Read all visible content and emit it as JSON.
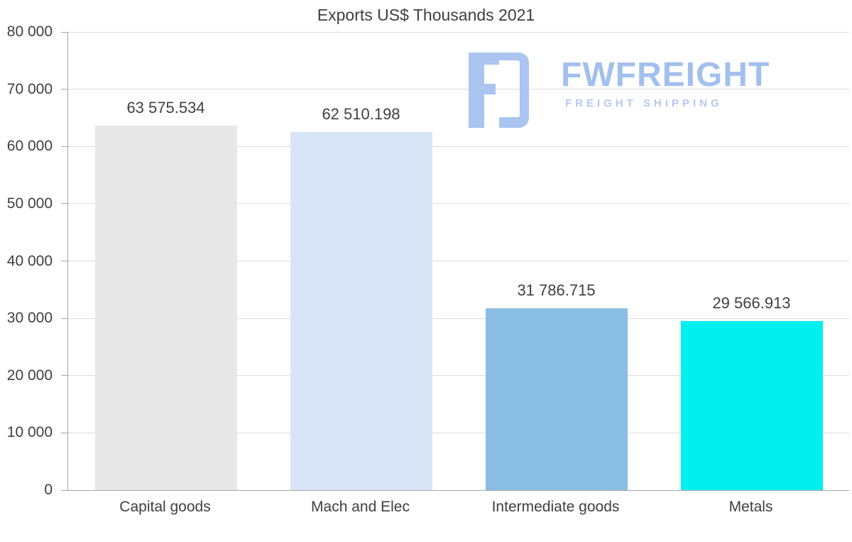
{
  "watermark": {
    "brand": "FWFREIGHT",
    "tagline": "FREIGHT SHIPPING",
    "color": "#a2c0ee"
  },
  "chart_data": {
    "type": "bar",
    "title": "Exports US$ Thousands 2021",
    "categories": [
      "Capital goods",
      "Mach and Elec",
      "Intermediate goods",
      "Metals"
    ],
    "values": [
      63575.534,
      62510.198,
      31786.715,
      29566.913
    ],
    "value_labels": [
      "63 575.534",
      "62 510.198",
      "31 786.715",
      "29 566.913"
    ],
    "bar_colors": [
      "#e7e7e7",
      "#d8e5f6",
      "#8bbee3",
      "#00efef"
    ],
    "xlabel": "",
    "ylabel": "",
    "ylim": [
      0,
      80000
    ],
    "y_tick_step": 10000,
    "y_tick_labels": [
      "0",
      "10 000",
      "20 000",
      "30 000",
      "40 000",
      "50 000",
      "60 000",
      "70 000",
      "80 000"
    ],
    "grid": true,
    "legend": "none",
    "axis_color": "#a6a6a6",
    "grid_color": "#dcdcdc",
    "label_color": "#3f3f3f"
  }
}
